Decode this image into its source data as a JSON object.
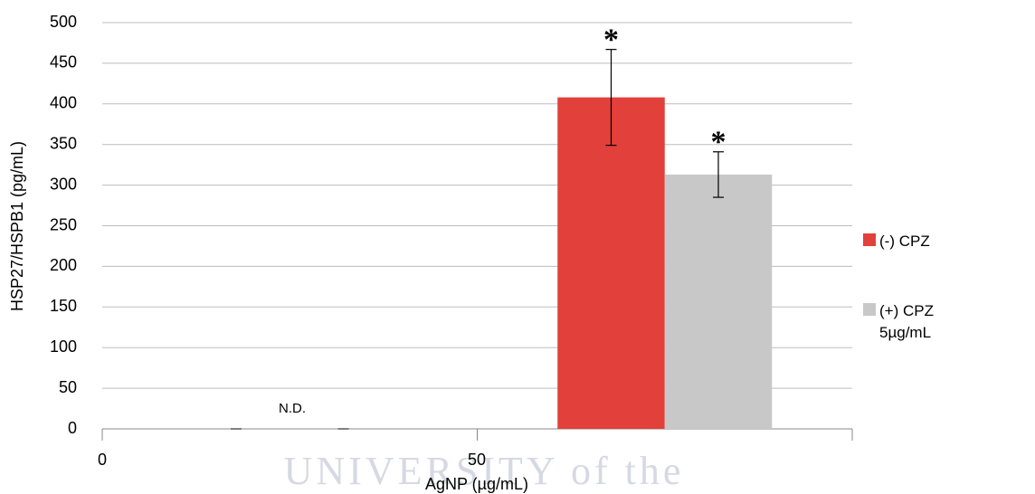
{
  "chart_data": {
    "type": "bar",
    "x_label": "AgNP (µg/mL)",
    "y_label": "HSP27/HSPB1 (pg/mL)",
    "categories": [
      "0",
      "50"
    ],
    "series": [
      {
        "name": "(-) CPZ",
        "color": "#e2403a",
        "values": [
          0,
          408
        ],
        "errors": [
          null,
          59
        ],
        "significance": [
          null,
          "*"
        ]
      },
      {
        "name": "(+) CPZ 5µg/mL",
        "color": "#c8c8c8",
        "values": [
          0,
          313
        ],
        "errors": [
          null,
          28
        ],
        "significance": [
          null,
          "*"
        ]
      }
    ],
    "annotation": "N.D.",
    "watermark": "UNIVERSITY of the",
    "ylim": [
      0,
      500
    ],
    "yticks": [
      0,
      50,
      100,
      150,
      200,
      250,
      300,
      350,
      400,
      450,
      500
    ],
    "grid": true
  }
}
